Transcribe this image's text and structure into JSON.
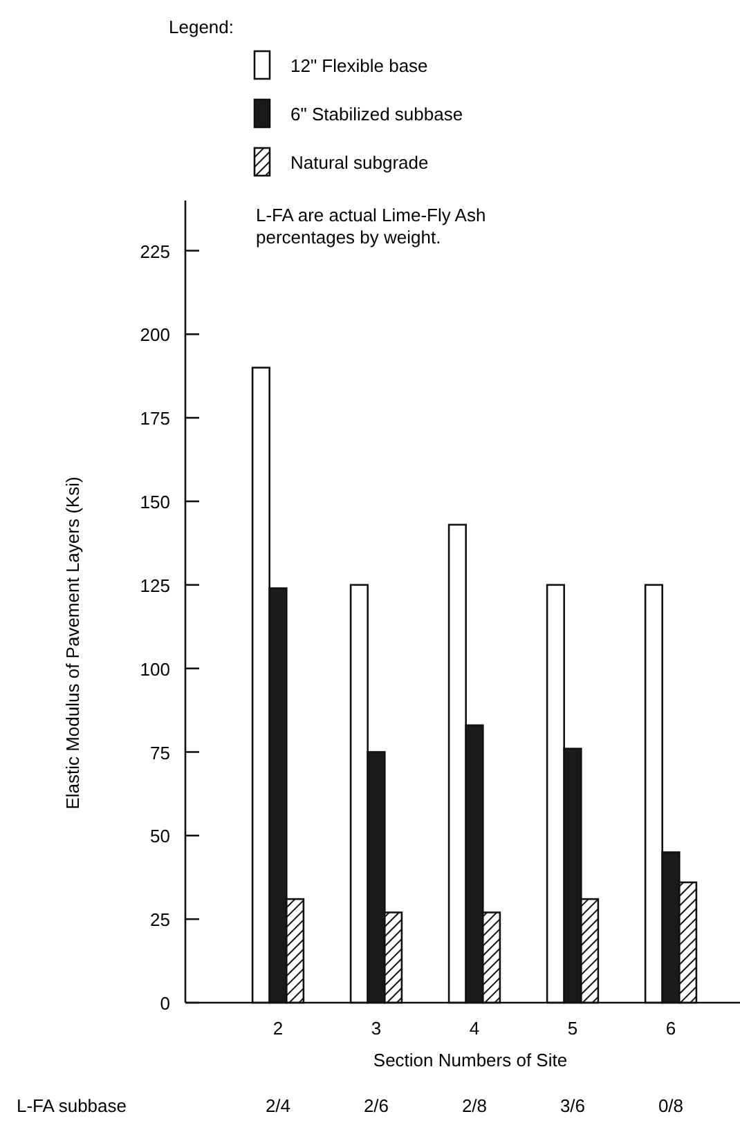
{
  "chart_data": {
    "type": "bar",
    "xlabel": "Section Numbers of Site",
    "ylabel": "Elastic Modulus of Pavement Layers (Ksi)",
    "legend_title": "Legend:",
    "legend": "top",
    "grid": false,
    "categories": [
      "2",
      "3",
      "4",
      "5",
      "6"
    ],
    "ylim": [
      0,
      240
    ],
    "yticks": [
      0,
      25,
      50,
      75,
      100,
      125,
      150,
      175,
      200,
      225
    ],
    "series": [
      {
        "name": "12\" Flexible base",
        "color": "#ffffff",
        "values": [
          190,
          125,
          143,
          125,
          125
        ]
      },
      {
        "name": "6\" Stabilized subbase",
        "color": "#1a1a1a",
        "values": [
          124,
          75,
          83,
          76,
          45
        ]
      },
      {
        "name": "Natural subgrade",
        "color": "#111111",
        "values": [
          31,
          27,
          27,
          31,
          36
        ]
      }
    ],
    "annotations": [
      "L-FA are actual Lime-Fly Ash percentages by weight.",
      "L-FA subbase",
      "2/4",
      "2/6",
      "2/8",
      "3/6",
      "0/8"
    ]
  }
}
